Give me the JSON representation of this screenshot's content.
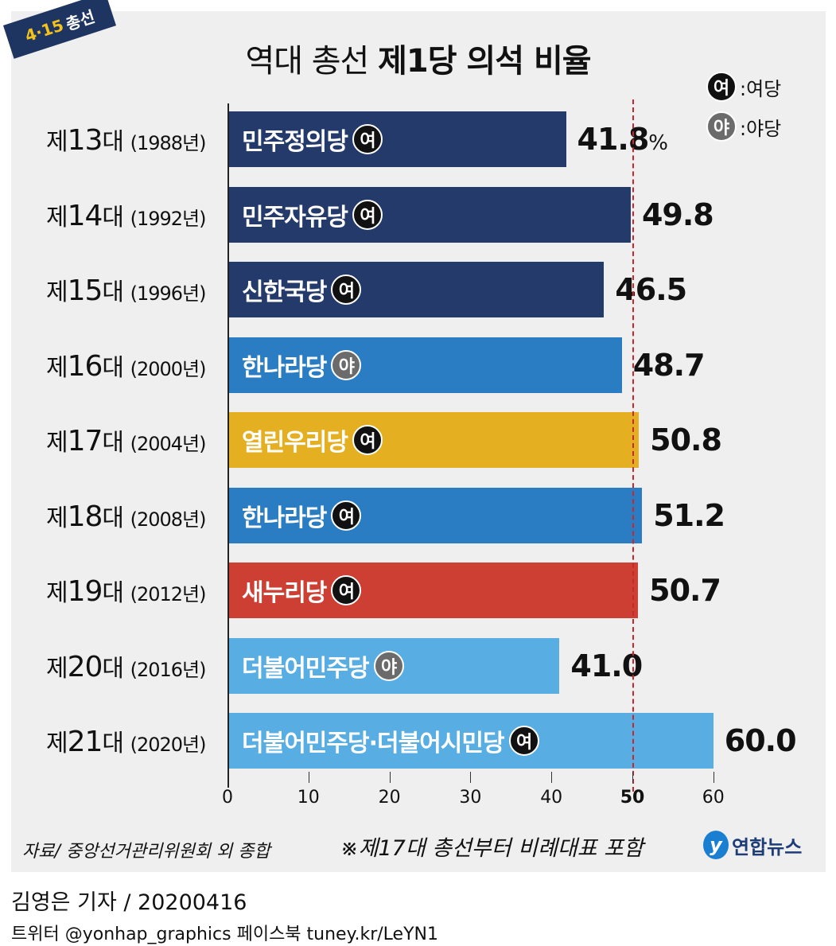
{
  "badge": {
    "year": "4·15",
    "label": "총선"
  },
  "title": {
    "light": "역대 총선",
    "bold": "제1당 의석 비율"
  },
  "legend": [
    {
      "symbol": "여",
      "label": ":여당",
      "color": "#111111"
    },
    {
      "symbol": "야",
      "label": ":야당",
      "color": "#6b6b6b"
    }
  ],
  "chart_data": {
    "type": "bar",
    "orientation": "horizontal",
    "title": "역대 총선 제1당 의석 비율",
    "unit": "%",
    "xlim": [
      0,
      60
    ],
    "xticks": [
      "0",
      "10",
      "20",
      "30",
      "40",
      "50",
      "60"
    ],
    "reference_line": 50,
    "categories": [
      {
        "term": "제13대",
        "num": "13",
        "year": "(1988년)"
      },
      {
        "term": "제14대",
        "num": "14",
        "year": "(1992년)"
      },
      {
        "term": "제15대",
        "num": "15",
        "year": "(1996년)"
      },
      {
        "term": "제16대",
        "num": "16",
        "year": "(2000년)"
      },
      {
        "term": "제17대",
        "num": "17",
        "year": "(2004년)"
      },
      {
        "term": "제18대",
        "num": "18",
        "year": "(2008년)"
      },
      {
        "term": "제19대",
        "num": "19",
        "year": "(2012년)"
      },
      {
        "term": "제20대",
        "num": "20",
        "year": "(2016년)"
      },
      {
        "term": "제21대",
        "num": "21",
        "year": "(2020년)"
      }
    ],
    "values": [
      41.8,
      49.8,
      46.5,
      48.7,
      50.8,
      51.2,
      50.7,
      41.0,
      60.0
    ],
    "value_labels": [
      "41.8",
      "49.8",
      "46.5",
      "48.7",
      "50.8",
      "51.2",
      "50.7",
      "41.0",
      "60.0"
    ],
    "parties": [
      "민주정의당",
      "민주자유당",
      "신한국당",
      "한나라당",
      "열린우리당",
      "한나라당",
      "새누리당",
      "더불어민주당",
      "더불어민주당·더불어시민당"
    ],
    "status": [
      "여",
      "여",
      "여",
      "야",
      "여",
      "여",
      "여",
      "야",
      "여"
    ],
    "colors": [
      "#233a6b",
      "#233a6b",
      "#233a6b",
      "#2a7dc2",
      "#e4b021",
      "#2a7dc2",
      "#cd3f33",
      "#58ade3",
      "#58ade3"
    ]
  },
  "prefix": "제",
  "suffix": "대",
  "source": "자료/ 중앙선거관리위원회 외 종합",
  "note": "※제17대 총선부터 비례대표 포함",
  "logo": "연합뉴스",
  "credit": "김영은 기자 / 20200416",
  "social": "트위터 @yonhap_graphics  페이스북 tuney.kr/LeYN1"
}
